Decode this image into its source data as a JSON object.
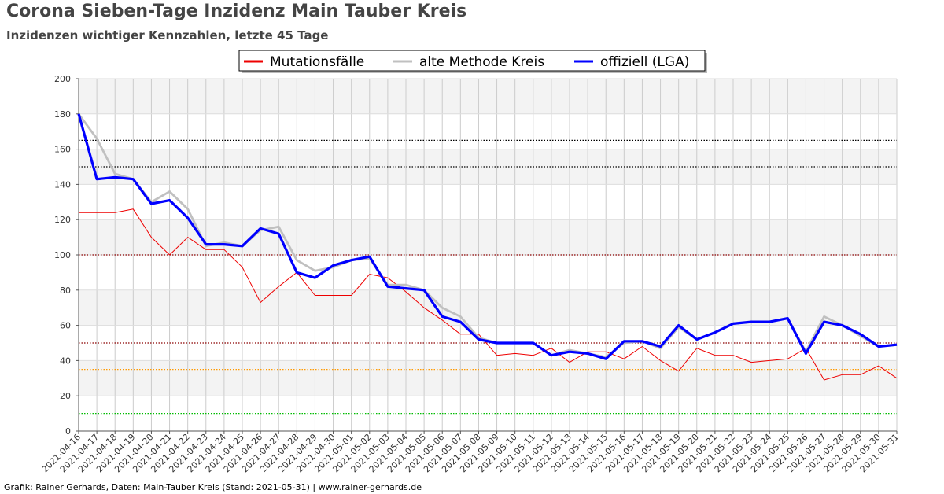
{
  "header": {
    "title": "Corona Sieben-Tage Inzidenz Main Tauber Kreis",
    "subtitle": "Inzidenzen wichtiger Kennzahlen, letzte 45 Tage"
  },
  "footer": {
    "text": "Grafik: Rainer Gerhards, Daten: Main-Tauber Kreis (Stand: 2021-05-31) | www.rainer-gerhards.de"
  },
  "chart_data": {
    "type": "line",
    "title": "Corona Sieben-Tage Inzidenz Main Tauber Kreis",
    "subtitle": "Inzidenzen wichtiger Kennzahlen, letzte 45 Tage",
    "xlabel": "",
    "ylabel": "",
    "ylim": [
      0,
      200
    ],
    "yticks": [
      0,
      20,
      40,
      60,
      80,
      100,
      120,
      140,
      160,
      180,
      200
    ],
    "grid": true,
    "legend_position": "top-center",
    "x": [
      "2021-04-16",
      "2021-04-17",
      "2021-04-18",
      "2021-04-19",
      "2021-04-20",
      "2021-04-21",
      "2021-04-22",
      "2021-04-23",
      "2021-04-24",
      "2021-04-25",
      "2021-04-26",
      "2021-04-27",
      "2021-04-28",
      "2021-04-29",
      "2021-04-30",
      "2021-05-01",
      "2021-05-02",
      "2021-05-03",
      "2021-05-04",
      "2021-05-05",
      "2021-05-06",
      "2021-05-07",
      "2021-05-08",
      "2021-05-09",
      "2021-05-10",
      "2021-05-11",
      "2021-05-12",
      "2021-05-13",
      "2021-05-14",
      "2021-05-15",
      "2021-05-16",
      "2021-05-17",
      "2021-05-18",
      "2021-05-19",
      "2021-05-20",
      "2021-05-21",
      "2021-05-22",
      "2021-05-23",
      "2021-05-24",
      "2021-05-25",
      "2021-05-26",
      "2021-05-27",
      "2021-05-28",
      "2021-05-29",
      "2021-05-30",
      "2021-05-31"
    ],
    "series": [
      {
        "name": "Mutationsfälle",
        "color": "#ee0000",
        "values": [
          124,
          124,
          124,
          126,
          110,
          100,
          110,
          103,
          103,
          93,
          73,
          82,
          90,
          77,
          77,
          77,
          89,
          87,
          79,
          70,
          63,
          55,
          55,
          43,
          44,
          43,
          47,
          39,
          45,
          45,
          41,
          48,
          40,
          34,
          47,
          43,
          43,
          39,
          40,
          41,
          47,
          29,
          32,
          32,
          37,
          30
        ]
      },
      {
        "name": "alte Methode Kreis",
        "color": "#c0c0c0",
        "values": [
          180,
          166,
          146,
          143,
          130,
          136,
          126,
          105,
          107,
          105,
          114,
          116,
          97,
          91,
          93,
          97,
          98,
          83,
          83,
          80,
          70,
          65,
          53,
          50,
          50,
          50,
          43,
          46,
          44,
          42,
          50,
          51,
          47,
          59,
          52,
          56,
          61,
          62,
          62,
          64,
          45,
          65,
          60,
          54,
          48,
          49
        ]
      },
      {
        "name": "offiziell (LGA)",
        "color": "#0000ff",
        "values": [
          180,
          143,
          144,
          143,
          129,
          131,
          121,
          106,
          106,
          105,
          115,
          112,
          90,
          87,
          94,
          97,
          99,
          82,
          81,
          80,
          65,
          62,
          52,
          50,
          50,
          50,
          43,
          45,
          44,
          41,
          51,
          51,
          48,
          60,
          52,
          56,
          61,
          62,
          62,
          64,
          44,
          62,
          60,
          55,
          48,
          49
        ]
      }
    ],
    "reference_lines": [
      {
        "value": 165,
        "color": "#000000"
      },
      {
        "value": 150,
        "color": "#000000"
      },
      {
        "value": 100,
        "color": "#8b0000"
      },
      {
        "value": 50,
        "color": "#8b0000"
      },
      {
        "value": 35,
        "color": "#ff9900"
      },
      {
        "value": 10,
        "color": "#00bb00"
      }
    ]
  }
}
